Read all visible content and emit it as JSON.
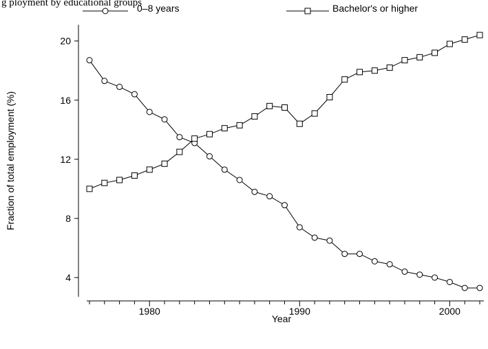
{
  "header_fragment": "g  ployment by educational groups",
  "chart_data": {
    "type": "line",
    "title": "",
    "xlabel": "Year",
    "ylabel": "Fraction of total employment (%)",
    "xlim": [
      1976,
      2002
    ],
    "ylim": [
      2.7,
      21.1
    ],
    "x_ticks": [
      1980,
      1990,
      2000
    ],
    "x_minor_ticks": [
      1976,
      1977,
      1978,
      1979,
      1980,
      1981,
      1982,
      1983,
      1984,
      1985,
      1986,
      1987,
      1988,
      1989,
      1990,
      1991,
      1992,
      1993,
      1994,
      1995,
      1996,
      1997,
      1998,
      1999,
      2000,
      2001,
      2002
    ],
    "y_ticks": [
      4,
      8,
      12,
      16,
      20
    ],
    "grid": false,
    "legend_position": "top",
    "x": [
      1976,
      1977,
      1978,
      1979,
      1980,
      1981,
      1982,
      1983,
      1984,
      1985,
      1986,
      1987,
      1988,
      1989,
      1990,
      1991,
      1992,
      1993,
      1994,
      1995,
      1996,
      1997,
      1998,
      1999,
      2000,
      2001,
      2002
    ],
    "series": [
      {
        "name": "0–8 years",
        "marker": "circle",
        "values": [
          18.7,
          17.3,
          16.9,
          16.4,
          15.2,
          14.7,
          13.5,
          13.1,
          12.2,
          11.3,
          10.6,
          9.8,
          9.5,
          8.9,
          7.4,
          6.7,
          6.5,
          5.6,
          5.6,
          5.1,
          4.9,
          4.4,
          4.2,
          4.0,
          3.7,
          3.3,
          3.3
        ]
      },
      {
        "name": "Bachelor's or higher",
        "marker": "square",
        "values": [
          10.0,
          10.4,
          10.6,
          10.9,
          11.3,
          11.7,
          12.5,
          13.4,
          13.7,
          14.1,
          14.3,
          14.9,
          15.6,
          15.5,
          14.4,
          15.1,
          16.2,
          17.4,
          17.9,
          18.0,
          18.2,
          18.7,
          18.9,
          19.2,
          19.8,
          20.1,
          20.4
        ]
      }
    ]
  }
}
